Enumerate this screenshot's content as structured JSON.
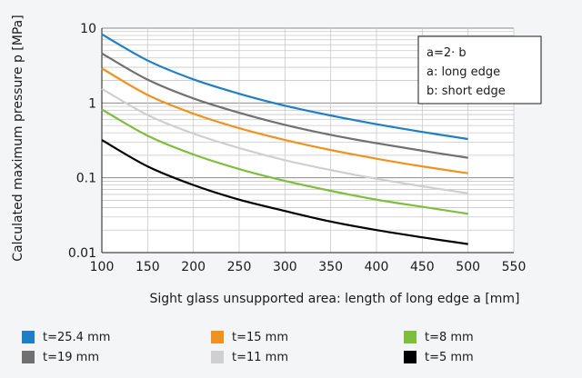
{
  "chart_data": {
    "type": "line",
    "title": "",
    "xlabel": "Sight glass unsupported area: length of long edge a [mm]",
    "ylabel": "Calculated maximum pressure p [MPa]",
    "x_scale": "linear",
    "y_scale": "log",
    "xlim": [
      100,
      550
    ],
    "ylim": [
      0.01,
      10
    ],
    "x_ticks": [
      "100",
      "150",
      "200",
      "250",
      "300",
      "350",
      "400",
      "450",
      "500",
      "550"
    ],
    "y_ticks": [
      "0.01",
      "0.1",
      "1",
      "10"
    ],
    "grid": true,
    "legend_position": "bottom",
    "annotation_lines": [
      "a=2· b",
      "a: long edge",
      "b: short edge"
    ],
    "x": [
      100,
      150,
      200,
      250,
      300,
      350,
      400,
      450,
      500
    ],
    "series": [
      {
        "name": "t=25.4 mm",
        "color": "#1f7fc4",
        "values": [
          8.3,
          3.7,
          2.07,
          1.33,
          0.92,
          0.68,
          0.52,
          0.41,
          0.33
        ]
      },
      {
        "name": "t=19 mm",
        "color": "#707070",
        "values": [
          4.6,
          2.05,
          1.15,
          0.74,
          0.51,
          0.375,
          0.29,
          0.23,
          0.185
        ]
      },
      {
        "name": "t=15 mm",
        "color": "#f0921e",
        "values": [
          2.9,
          1.28,
          0.72,
          0.46,
          0.32,
          0.235,
          0.18,
          0.142,
          0.115
        ]
      },
      {
        "name": "t=11 mm",
        "color": "#cfcfcf",
        "values": [
          1.55,
          0.69,
          0.39,
          0.25,
          0.172,
          0.127,
          0.097,
          0.077,
          0.062
        ]
      },
      {
        "name": "t=8 mm",
        "color": "#7dbe3b",
        "values": [
          0.82,
          0.365,
          0.205,
          0.131,
          0.091,
          0.067,
          0.051,
          0.041,
          0.033
        ]
      },
      {
        "name": "t=5 mm",
        "color": "#000000",
        "values": [
          0.32,
          0.142,
          0.08,
          0.051,
          0.036,
          0.026,
          0.02,
          0.016,
          0.013
        ]
      }
    ]
  }
}
